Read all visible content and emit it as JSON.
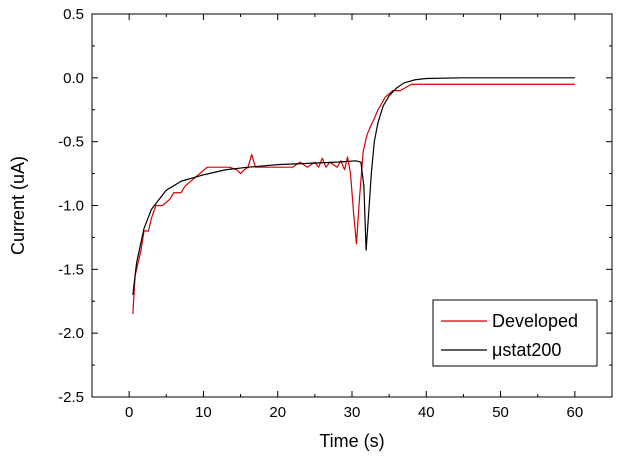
{
  "chart_data": {
    "type": "line",
    "title": "",
    "xlabel": "Time (s)",
    "ylabel": "Current (uA)",
    "xlim": [
      -5,
      65
    ],
    "ylim": [
      -2.5,
      0.5
    ],
    "x_ticks": [
      0,
      10,
      20,
      30,
      40,
      50,
      60
    ],
    "y_ticks": [
      -2.5,
      -2.0,
      -1.5,
      -1.0,
      -0.5,
      0.0,
      0.5
    ],
    "x_tick_labels": [
      "0",
      "10",
      "20",
      "30",
      "40",
      "50",
      "60"
    ],
    "y_tick_labels": [
      "-2.5",
      "-2.0",
      "-1.5",
      "-1.0",
      "-0.5",
      "0.0",
      "0.5"
    ],
    "grid": false,
    "legend_position": "bottom-right",
    "series": [
      {
        "name": "Developed",
        "color": "#d40000",
        "points": [
          [
            0.5,
            -1.85
          ],
          [
            0.8,
            -1.55
          ],
          [
            1.2,
            -1.45
          ],
          [
            1.6,
            -1.35
          ],
          [
            2.0,
            -1.2
          ],
          [
            2.6,
            -1.2
          ],
          [
            3.0,
            -1.1
          ],
          [
            3.6,
            -1.0
          ],
          [
            4.5,
            -1.0
          ],
          [
            5.5,
            -0.95
          ],
          [
            6.0,
            -0.9
          ],
          [
            7.0,
            -0.9
          ],
          [
            7.5,
            -0.85
          ],
          [
            8.5,
            -0.8
          ],
          [
            9.5,
            -0.75
          ],
          [
            10.5,
            -0.7
          ],
          [
            12.0,
            -0.7
          ],
          [
            13.5,
            -0.7
          ],
          [
            14.5,
            -0.72
          ],
          [
            15.0,
            -0.75
          ],
          [
            15.5,
            -0.72
          ],
          [
            16.0,
            -0.7
          ],
          [
            16.5,
            -0.6
          ],
          [
            17.0,
            -0.7
          ],
          [
            18.0,
            -0.7
          ],
          [
            20.0,
            -0.7
          ],
          [
            22.0,
            -0.7
          ],
          [
            23.0,
            -0.66
          ],
          [
            24.0,
            -0.7
          ],
          [
            25.0,
            -0.66
          ],
          [
            25.5,
            -0.7
          ],
          [
            26.0,
            -0.63
          ],
          [
            26.5,
            -0.7
          ],
          [
            27.0,
            -0.66
          ],
          [
            28.0,
            -0.7
          ],
          [
            28.5,
            -0.65
          ],
          [
            29.0,
            -0.72
          ],
          [
            29.4,
            -0.62
          ],
          [
            29.8,
            -0.75
          ],
          [
            30.2,
            -1.05
          ],
          [
            30.6,
            -1.3
          ],
          [
            31.0,
            -0.95
          ],
          [
            31.5,
            -0.58
          ],
          [
            32.0,
            -0.45
          ],
          [
            32.5,
            -0.38
          ],
          [
            33.0,
            -0.32
          ],
          [
            33.5,
            -0.25
          ],
          [
            34.0,
            -0.2
          ],
          [
            34.5,
            -0.15
          ],
          [
            35.5,
            -0.1
          ],
          [
            36.5,
            -0.1
          ],
          [
            38.0,
            -0.05
          ],
          [
            60.0,
            -0.05
          ]
        ]
      },
      {
        "name": "μstat200",
        "color": "#000000",
        "points": [
          [
            0.5,
            -1.7
          ],
          [
            1.0,
            -1.45
          ],
          [
            2.0,
            -1.18
          ],
          [
            3.0,
            -1.03
          ],
          [
            5.0,
            -0.88
          ],
          [
            7.0,
            -0.81
          ],
          [
            10.0,
            -0.76
          ],
          [
            13.0,
            -0.72
          ],
          [
            16.0,
            -0.7
          ],
          [
            20.0,
            -0.68
          ],
          [
            24.0,
            -0.67
          ],
          [
            28.0,
            -0.66
          ],
          [
            30.5,
            -0.65
          ],
          [
            31.2,
            -0.66
          ],
          [
            31.6,
            -0.85
          ],
          [
            31.9,
            -1.35
          ],
          [
            32.2,
            -1.1
          ],
          [
            32.6,
            -0.75
          ],
          [
            33.0,
            -0.5
          ],
          [
            33.5,
            -0.35
          ],
          [
            34.2,
            -0.22
          ],
          [
            35.0,
            -0.14
          ],
          [
            36.0,
            -0.08
          ],
          [
            37.0,
            -0.04
          ],
          [
            38.5,
            -0.015
          ],
          [
            40.0,
            -0.005
          ],
          [
            45.0,
            0.0
          ],
          [
            60.0,
            0.0
          ]
        ]
      }
    ]
  }
}
